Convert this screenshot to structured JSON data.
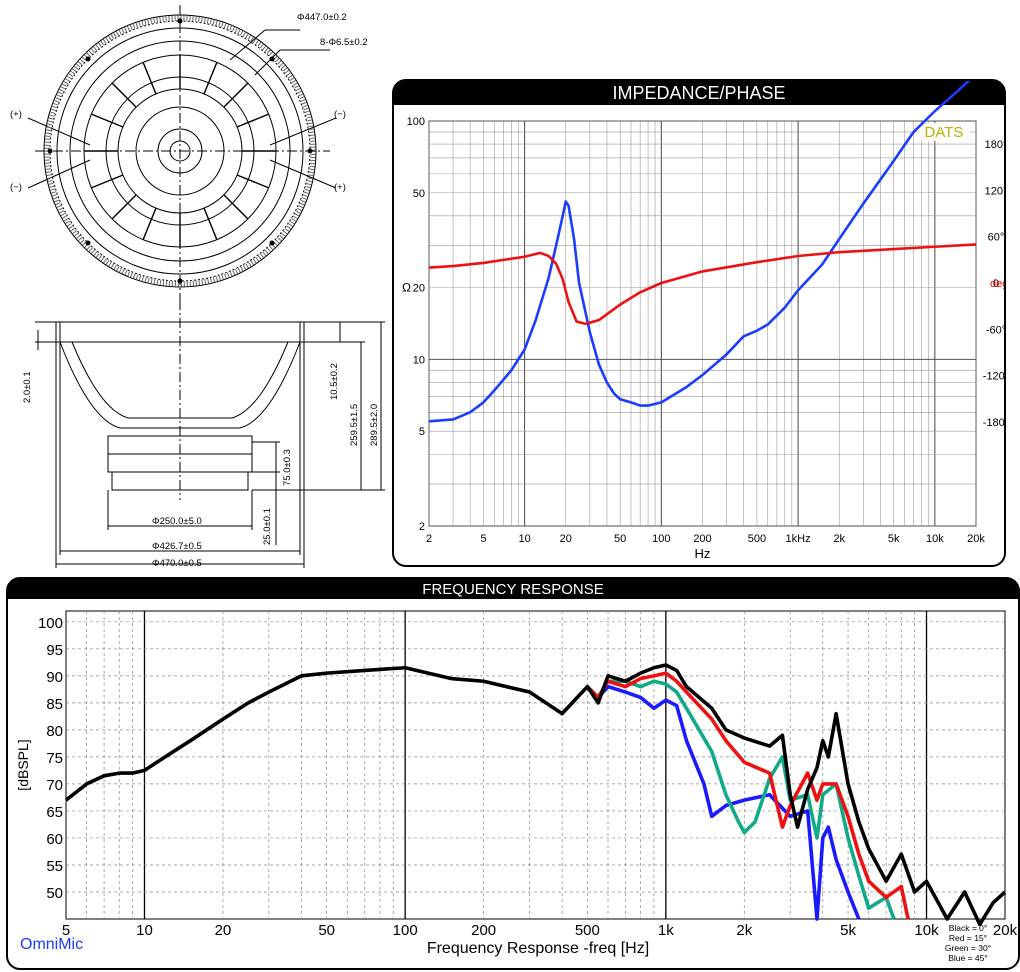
{
  "drawing": {
    "dims": {
      "d447": "Φ447.0±0.2",
      "holes": "8-Φ6.5±0.2",
      "d250": "Φ250.0±5.0",
      "d426": "Φ426.7±0.5",
      "d470": "Φ470.0±0.5",
      "h2": "2.0±0.1",
      "h105": "10.5±0.2",
      "h259": "259.5±1.5",
      "h289": "289.5±2.0",
      "h75": "75.0±0.3",
      "h25": "25.0±0.1"
    },
    "terminal_plus": "(+)",
    "terminal_minus": "(−)"
  },
  "chart_data": [
    {
      "type": "line",
      "title": "IMPEDANCE/PHASE",
      "brand": "DATS",
      "xlabel": "Hz",
      "ylabel": "Ω",
      "xscale": "log",
      "yscale": "log",
      "xlim": [
        2,
        20000
      ],
      "ylim": [
        2,
        100
      ],
      "x_ticks": [
        2,
        5,
        10,
        20,
        50,
        100,
        200,
        500,
        1000,
        2000,
        5000,
        10000,
        20000
      ],
      "x_tick_labels": [
        "2",
        "5",
        "10",
        "20",
        "50",
        "100",
        "200",
        "500",
        "1kHz",
        "2k",
        "5k",
        "10k",
        "20k"
      ],
      "y_ticks": [
        2,
        5,
        10,
        20,
        50,
        100
      ],
      "y_tick_labels": [
        "2",
        "5",
        "10",
        "20",
        "50",
        "100"
      ],
      "y2label": "deg",
      "y2lim": [
        -315,
        210
      ],
      "y2_ticks": [
        180,
        120,
        60,
        0,
        -60,
        -120,
        -180
      ],
      "y2_tick_labels": [
        "180°",
        "120°",
        "60°",
        "0",
        "-60°",
        "-120°",
        "-180°"
      ],
      "grid": true,
      "series": [
        {
          "name": "impedance",
          "color": "#1a3cff",
          "x": [
            2,
            3,
            4,
            5,
            6,
            8,
            10,
            12,
            15,
            17,
            19,
            20,
            21,
            23,
            25,
            30,
            35,
            40,
            45,
            50,
            60,
            70,
            80,
            100,
            150,
            200,
            300,
            400,
            500,
            600,
            800,
            1000,
            1500,
            2000,
            3000,
            5000,
            7000,
            10000,
            15000,
            20000
          ],
          "y": [
            5.5,
            5.6,
            6.0,
            6.6,
            7.4,
            9.0,
            11.0,
            14.5,
            22,
            30,
            40,
            46,
            44,
            32,
            21,
            13,
            9.5,
            8.0,
            7.2,
            6.8,
            6.6,
            6.4,
            6.4,
            6.6,
            7.6,
            8.6,
            10.5,
            12.5,
            13.2,
            14.0,
            16.5,
            19.5,
            25,
            32,
            45,
            68,
            90,
            110,
            135,
            158
          ]
        },
        {
          "name": "phase",
          "color": "#ee1111",
          "x": [
            2,
            3,
            5,
            7,
            10,
            13,
            15,
            17,
            19,
            21,
            24,
            28,
            35,
            50,
            70,
            100,
            200,
            500,
            1000,
            2000,
            5000,
            10000,
            20000
          ],
          "y": [
            20,
            22,
            26,
            30,
            34,
            39,
            35,
            25,
            5,
            -25,
            -50,
            -53,
            -48,
            -28,
            -12,
            0,
            15,
            27,
            35,
            40,
            44,
            47,
            50
          ]
        }
      ]
    },
    {
      "type": "line",
      "title": "FREQUENCY RESPONSE",
      "brand": "OmniMic",
      "xlabel": "Frequency Response -freq [Hz]",
      "ylabel": "[dBSPL]",
      "xscale": "log",
      "xlim": [
        5,
        20000
      ],
      "ylim": [
        45,
        102
      ],
      "x_ticks": [
        5,
        10,
        20,
        50,
        100,
        200,
        500,
        1000,
        2000,
        5000,
        10000,
        20000
      ],
      "x_tick_labels": [
        "5",
        "10",
        "20",
        "50",
        "100",
        "200",
        "500",
        "1k",
        "2k",
        "5k",
        "10k",
        "20k"
      ],
      "y_ticks": [
        50,
        55,
        60,
        65,
        70,
        75,
        80,
        85,
        90,
        95,
        100
      ],
      "y_tick_labels": [
        "50",
        "55",
        "60",
        "65",
        "70",
        "75",
        "80",
        "85",
        "90",
        "95",
        "100"
      ],
      "grid": true,
      "legend": [
        "Black = 0°",
        "Red = 15°",
        "Green = 30°",
        "Blue = 45°"
      ],
      "series": [
        {
          "name": "Black = 0°",
          "color": "#000000",
          "x": [
            5,
            6,
            7,
            8,
            9,
            10,
            12,
            15,
            20,
            25,
            30,
            40,
            50,
            70,
            100,
            150,
            200,
            300,
            400,
            500,
            550,
            600,
            700,
            800,
            900,
            1000,
            1100,
            1200,
            1500,
            1700,
            2000,
            2500,
            2800,
            3000,
            3200,
            3500,
            3800,
            4000,
            4200,
            4500,
            5000,
            5500,
            6000,
            7000,
            8000,
            9000,
            10000,
            12000,
            14000,
            16000,
            18000,
            20000
          ],
          "y": [
            67,
            70,
            71.5,
            72,
            72,
            72.5,
            75,
            78,
            82,
            85,
            87,
            90,
            90.5,
            91,
            91.5,
            89.5,
            89,
            87,
            83,
            88,
            85,
            90,
            89,
            90.5,
            91.5,
            92,
            91,
            88,
            84,
            80,
            78.5,
            77,
            79,
            68,
            62,
            69,
            73,
            78,
            75,
            83,
            70,
            63,
            58,
            52,
            57,
            50,
            52,
            45,
            50,
            44,
            48,
            50
          ]
        },
        {
          "name": "Red = 15°",
          "color": "#ee1111",
          "x": [
            500,
            550,
            600,
            700,
            800,
            900,
            1000,
            1100,
            1200,
            1500,
            1700,
            2000,
            2500,
            2800,
            3000,
            3500,
            3800,
            4000,
            4500,
            5000,
            5500,
            6000,
            7000,
            8000,
            8500
          ],
          "y": [
            88,
            86,
            89,
            88,
            89.5,
            90,
            90.5,
            89,
            87,
            82,
            78,
            74,
            72,
            62,
            66,
            72,
            67,
            70,
            70,
            64,
            57,
            52,
            49,
            51,
            45
          ]
        },
        {
          "name": "Green = 30°",
          "color": "#11aa88",
          "x": [
            500,
            550,
            600,
            700,
            800,
            900,
            1000,
            1100,
            1200,
            1500,
            1700,
            1900,
            2000,
            2200,
            2500,
            2800,
            3000,
            3500,
            3800,
            4000,
            4500,
            5000,
            5500,
            6000,
            7000,
            7500
          ],
          "y": [
            88,
            86,
            89,
            89,
            88,
            89,
            88.5,
            87,
            84,
            76,
            68,
            63,
            61,
            63,
            71,
            75,
            67,
            68,
            60,
            68,
            70,
            60,
            53,
            47,
            49,
            45
          ]
        },
        {
          "name": "Blue = 45°",
          "color": "#1a1aff",
          "x": [
            500,
            550,
            600,
            700,
            800,
            900,
            1000,
            1100,
            1200,
            1400,
            1500,
            1700,
            2000,
            2500,
            3000,
            3500,
            3800,
            4000,
            4200,
            4500,
            5000,
            5500
          ],
          "y": [
            88,
            86,
            88,
            87,
            86,
            84,
            85.5,
            84.5,
            78,
            70,
            64,
            66,
            67,
            68,
            64,
            65,
            45,
            60,
            62,
            56,
            50,
            45
          ]
        }
      ]
    }
  ]
}
